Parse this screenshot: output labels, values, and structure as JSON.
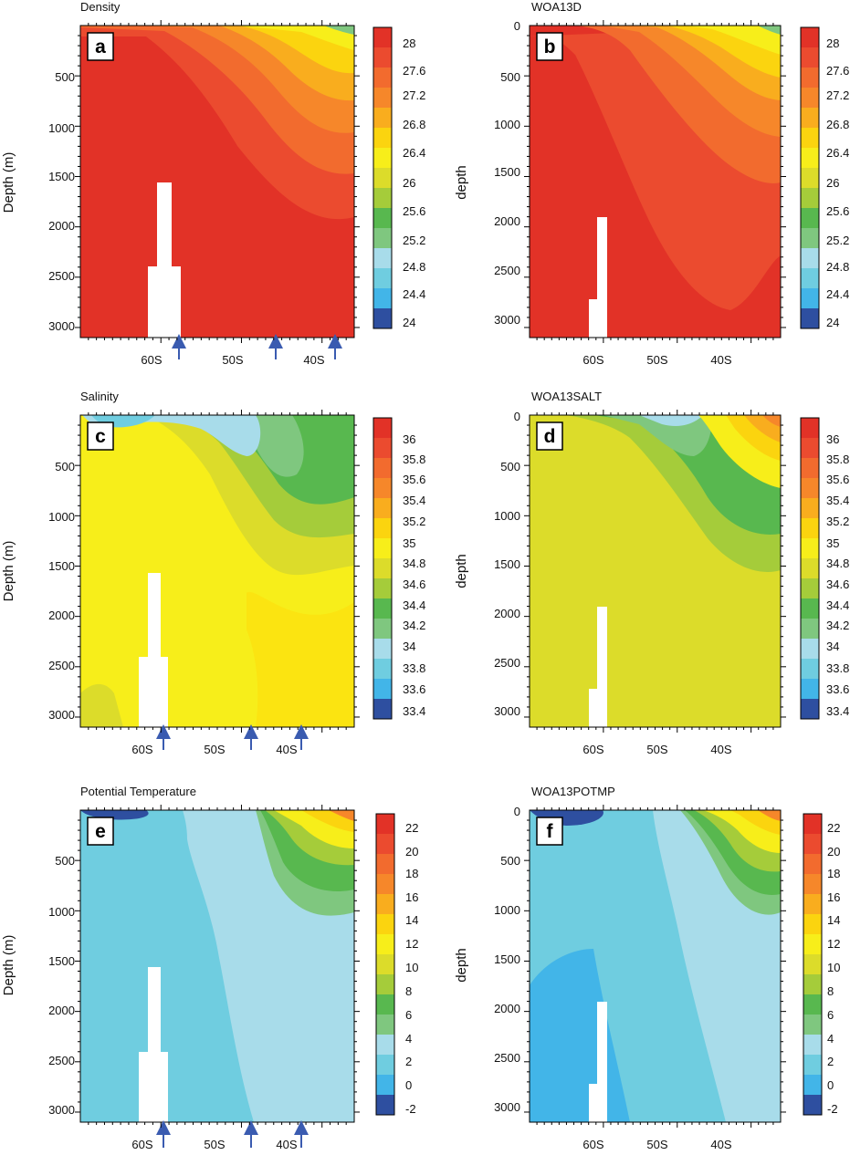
{
  "chart_data": [
    {
      "type": "heatmap",
      "panel_letter": "a",
      "title": "Density",
      "ylabel": "Depth (m)",
      "xlabel": "",
      "x_tick_labels": [
        "60S",
        "50S",
        "40S"
      ],
      "y_tick_labels": [
        "500",
        "1000",
        "1500",
        "2000",
        "2500",
        "3000"
      ],
      "ylim": [
        0,
        3100
      ],
      "xlim": [
        -69,
        -35
      ],
      "arrows_at_lat": [
        -57,
        -45,
        -37
      ],
      "colorbar_labels": [
        "28",
        "27.6",
        "27.2",
        "26.8",
        "26.4",
        "26",
        "25.6",
        "25.2",
        "24.8",
        "24.4",
        "24"
      ],
      "colors": [
        "#2e4fa0",
        "#42b5e8",
        "#6fcde0",
        "#a8dcea",
        "#7fc77f",
        "#58b84f",
        "#a5cc3a",
        "#dcdc2a",
        "#f7ee1a",
        "#fbd40f",
        "#f9ad1e",
        "#f6872a",
        "#f26b2e",
        "#eb4b2f",
        "#e23227"
      ]
    },
    {
      "type": "heatmap",
      "panel_letter": "b",
      "title": "WOA13D",
      "ylabel": "depth",
      "xlabel": "",
      "x_tick_labels": [
        "60S",
        "50S",
        "40S"
      ],
      "y_tick_labels": [
        "0",
        "500",
        "1000",
        "1500",
        "2000",
        "2500",
        "3000"
      ],
      "ylim": [
        0,
        3100
      ],
      "xlim": [
        -69,
        -35
      ],
      "arrows_at_lat": [],
      "colorbar_labels": [
        "28",
        "27.6",
        "27.2",
        "26.8",
        "26.4",
        "26",
        "25.6",
        "25.2",
        "24.8",
        "24.4",
        "24"
      ],
      "colors": [
        "#2e4fa0",
        "#42b5e8",
        "#6fcde0",
        "#a8dcea",
        "#7fc77f",
        "#58b84f",
        "#a5cc3a",
        "#dcdc2a",
        "#f7ee1a",
        "#fbd40f",
        "#f9ad1e",
        "#f6872a",
        "#f26b2e",
        "#eb4b2f",
        "#e23227"
      ]
    },
    {
      "type": "heatmap",
      "panel_letter": "c",
      "title": "Salinity",
      "ylabel": "Depth (m)",
      "xlabel": "",
      "x_tick_labels": [
        "60S",
        "50S",
        "40S"
      ],
      "y_tick_labels": [
        "500",
        "1000",
        "1500",
        "2000",
        "2500",
        "3000"
      ],
      "ylim": [
        0,
        3100
      ],
      "xlim": [
        -69,
        -35
      ],
      "arrows_at_lat": [
        -57,
        -45,
        -37
      ],
      "colorbar_labels": [
        "36",
        "35.8",
        "35.6",
        "35.4",
        "35.2",
        "35",
        "34.8",
        "34.6",
        "34.4",
        "34.2",
        "34",
        "33.8",
        "33.6",
        "33.4"
      ],
      "colors": [
        "#2e4fa0",
        "#42b5e8",
        "#6fcde0",
        "#a8dcea",
        "#7fc77f",
        "#58b84f",
        "#a5cc3a",
        "#dcdc2a",
        "#f7ee1a",
        "#fbd40f",
        "#f9ad1e",
        "#f6872a",
        "#f26b2e",
        "#eb4b2f",
        "#e23227"
      ]
    },
    {
      "type": "heatmap",
      "panel_letter": "d",
      "title": "WOA13SALT",
      "ylabel": "depth",
      "xlabel": "",
      "x_tick_labels": [
        "60S",
        "50S",
        "40S"
      ],
      "y_tick_labels": [
        "0",
        "500",
        "1000",
        "1500",
        "2000",
        "2500",
        "3000"
      ],
      "ylim": [
        0,
        3100
      ],
      "xlim": [
        -69,
        -35
      ],
      "arrows_at_lat": [],
      "colorbar_labels": [
        "36",
        "35.8",
        "35.6",
        "35.4",
        "35.2",
        "35",
        "34.8",
        "34.6",
        "34.4",
        "34.2",
        "34",
        "33.8",
        "33.6",
        "33.4"
      ],
      "colors": [
        "#2e4fa0",
        "#42b5e8",
        "#6fcde0",
        "#a8dcea",
        "#7fc77f",
        "#58b84f",
        "#a5cc3a",
        "#dcdc2a",
        "#f7ee1a",
        "#fbd40f",
        "#f9ad1e",
        "#f6872a",
        "#f26b2e",
        "#eb4b2f",
        "#e23227"
      ]
    },
    {
      "type": "heatmap",
      "panel_letter": "e",
      "title": "Potential Temperature",
      "ylabel": "Depth (m)",
      "xlabel": "",
      "x_tick_labels": [
        "60S",
        "50S",
        "40S"
      ],
      "y_tick_labels": [
        "500",
        "1000",
        "1500",
        "2000",
        "2500",
        "3000"
      ],
      "ylim": [
        0,
        3100
      ],
      "xlim": [
        -69,
        -35
      ],
      "arrows_at_lat": [
        -57,
        -45,
        -37
      ],
      "colorbar_labels": [
        "22",
        "20",
        "18",
        "16",
        "14",
        "12",
        "10",
        "8",
        "6",
        "4",
        "2",
        "0",
        "-2"
      ],
      "colors": [
        "#2e4fa0",
        "#42b5e8",
        "#6fcde0",
        "#a8dcea",
        "#7fc77f",
        "#58b84f",
        "#a5cc3a",
        "#dcdc2a",
        "#f7ee1a",
        "#fbd40f",
        "#f9ad1e",
        "#f6872a",
        "#f26b2e",
        "#eb4b2f",
        "#e23227"
      ]
    },
    {
      "type": "heatmap",
      "panel_letter": "f",
      "title": "WOA13POTMP",
      "ylabel": "depth",
      "xlabel": "",
      "x_tick_labels": [
        "60S",
        "50S",
        "40S"
      ],
      "y_tick_labels": [
        "0",
        "500",
        "1000",
        "1500",
        "2000",
        "2500",
        "3000"
      ],
      "ylim": [
        0,
        3100
      ],
      "xlim": [
        -69,
        -35
      ],
      "arrows_at_lat": [],
      "colorbar_labels": [
        "22",
        "20",
        "18",
        "16",
        "14",
        "12",
        "10",
        "8",
        "6",
        "4",
        "2",
        "0",
        "-2"
      ],
      "colors": [
        "#2e4fa0",
        "#42b5e8",
        "#6fcde0",
        "#a8dcea",
        "#7fc77f",
        "#58b84f",
        "#a5cc3a",
        "#dcdc2a",
        "#f7ee1a",
        "#fbd40f",
        "#f9ad1e",
        "#f6872a",
        "#f26b2e",
        "#eb4b2f",
        "#e23227"
      ]
    }
  ]
}
